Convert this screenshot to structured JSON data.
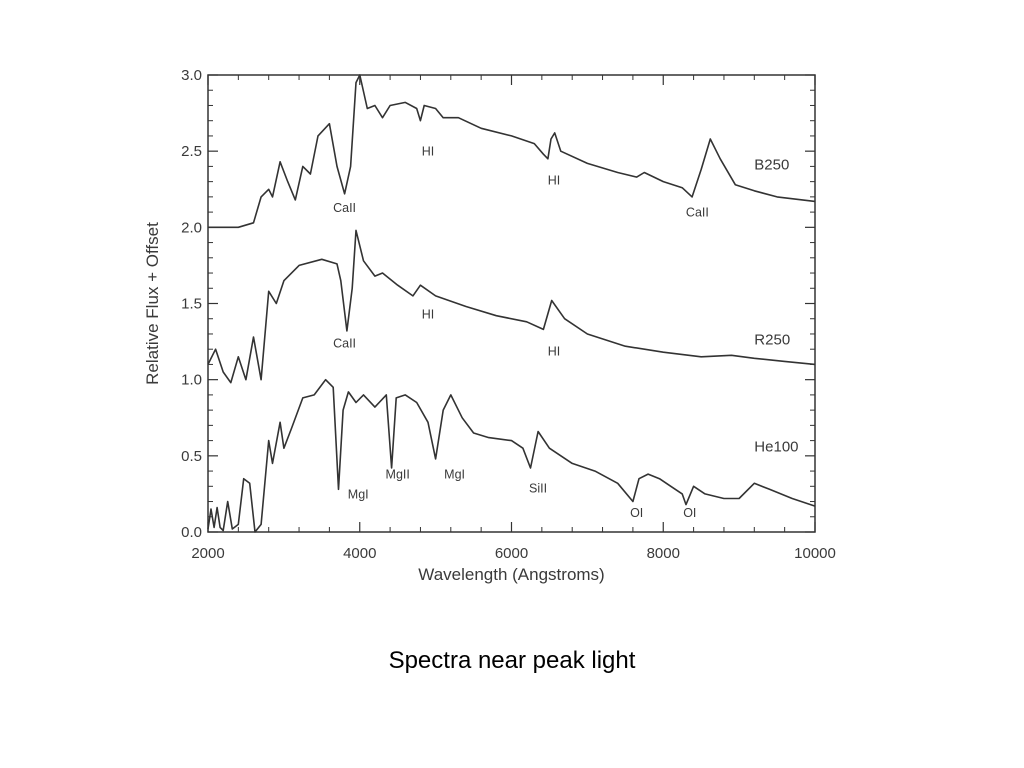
{
  "caption": "Spectra near peak light",
  "chart_data": {
    "type": "line",
    "title": "",
    "xlabel": "Wavelength (Angstroms)",
    "ylabel": "Relative Flux + Offset",
    "xlim": [
      2000,
      10000
    ],
    "ylim": [
      0.0,
      3.0
    ],
    "x_ticks": [
      2000,
      4000,
      6000,
      8000,
      10000
    ],
    "x_tick_labels": [
      "2000",
      "4000",
      "6000",
      "8000",
      "10000"
    ],
    "y_ticks": [
      0.0,
      0.5,
      1.0,
      1.5,
      2.0,
      2.5,
      3.0
    ],
    "y_tick_labels": [
      "0.0",
      "0.5",
      "1.0",
      "1.5",
      "2.0",
      "2.5",
      "3.0"
    ],
    "grid": false,
    "series": [
      {
        "name": "B250",
        "label_pos": [
          9200,
          2.38
        ],
        "points": [
          [
            2000,
            2.0
          ],
          [
            2200,
            2.0
          ],
          [
            2400,
            2.0
          ],
          [
            2600,
            2.03
          ],
          [
            2700,
            2.2
          ],
          [
            2800,
            2.25
          ],
          [
            2850,
            2.2
          ],
          [
            2950,
            2.43
          ],
          [
            3050,
            2.3
          ],
          [
            3150,
            2.18
          ],
          [
            3250,
            2.4
          ],
          [
            3350,
            2.35
          ],
          [
            3450,
            2.6
          ],
          [
            3600,
            2.68
          ],
          [
            3700,
            2.4
          ],
          [
            3800,
            2.22
          ],
          [
            3880,
            2.4
          ],
          [
            3950,
            2.95
          ],
          [
            4000,
            3.0
          ],
          [
            4100,
            2.78
          ],
          [
            4200,
            2.8
          ],
          [
            4300,
            2.72
          ],
          [
            4400,
            2.8
          ],
          [
            4600,
            2.82
          ],
          [
            4750,
            2.78
          ],
          [
            4800,
            2.7
          ],
          [
            4850,
            2.8
          ],
          [
            5000,
            2.78
          ],
          [
            5100,
            2.72
          ],
          [
            5300,
            2.72
          ],
          [
            5600,
            2.65
          ],
          [
            6000,
            2.6
          ],
          [
            6300,
            2.55
          ],
          [
            6420,
            2.48
          ],
          [
            6480,
            2.45
          ],
          [
            6520,
            2.58
          ],
          [
            6570,
            2.62
          ],
          [
            6650,
            2.5
          ],
          [
            7000,
            2.42
          ],
          [
            7400,
            2.36
          ],
          [
            7650,
            2.33
          ],
          [
            7750,
            2.36
          ],
          [
            8000,
            2.3
          ],
          [
            8250,
            2.26
          ],
          [
            8380,
            2.2
          ],
          [
            8500,
            2.38
          ],
          [
            8620,
            2.58
          ],
          [
            8750,
            2.45
          ],
          [
            8950,
            2.28
          ],
          [
            9200,
            2.24
          ],
          [
            9500,
            2.2
          ],
          [
            10000,
            2.17
          ]
        ]
      },
      {
        "name": "R250",
        "label_pos": [
          9200,
          1.23
        ],
        "points": [
          [
            2000,
            1.1
          ],
          [
            2100,
            1.2
          ],
          [
            2200,
            1.05
          ],
          [
            2300,
            0.98
          ],
          [
            2400,
            1.15
          ],
          [
            2500,
            1.0
          ],
          [
            2600,
            1.28
          ],
          [
            2700,
            1.0
          ],
          [
            2800,
            1.58
          ],
          [
            2900,
            1.5
          ],
          [
            3000,
            1.65
          ],
          [
            3200,
            1.75
          ],
          [
            3500,
            1.79
          ],
          [
            3700,
            1.76
          ],
          [
            3750,
            1.65
          ],
          [
            3830,
            1.32
          ],
          [
            3900,
            1.6
          ],
          [
            3950,
            1.98
          ],
          [
            4050,
            1.78
          ],
          [
            4200,
            1.68
          ],
          [
            4300,
            1.7
          ],
          [
            4500,
            1.62
          ],
          [
            4700,
            1.55
          ],
          [
            4800,
            1.62
          ],
          [
            5000,
            1.55
          ],
          [
            5400,
            1.48
          ],
          [
            5800,
            1.42
          ],
          [
            6200,
            1.38
          ],
          [
            6420,
            1.33
          ],
          [
            6530,
            1.52
          ],
          [
            6700,
            1.4
          ],
          [
            7000,
            1.3
          ],
          [
            7500,
            1.22
          ],
          [
            8000,
            1.18
          ],
          [
            8500,
            1.15
          ],
          [
            8900,
            1.16
          ],
          [
            9200,
            1.14
          ],
          [
            9600,
            1.12
          ],
          [
            10000,
            1.1
          ]
        ]
      },
      {
        "name": "He100",
        "label_pos": [
          9200,
          0.53
        ],
        "points": [
          [
            2000,
            0.02
          ],
          [
            2040,
            0.15
          ],
          [
            2080,
            0.03
          ],
          [
            2120,
            0.16
          ],
          [
            2160,
            0.03
          ],
          [
            2200,
            0.01
          ],
          [
            2260,
            0.2
          ],
          [
            2320,
            0.02
          ],
          [
            2400,
            0.05
          ],
          [
            2470,
            0.35
          ],
          [
            2550,
            0.32
          ],
          [
            2620,
            0.0
          ],
          [
            2700,
            0.05
          ],
          [
            2800,
            0.6
          ],
          [
            2850,
            0.45
          ],
          [
            2950,
            0.72
          ],
          [
            3000,
            0.55
          ],
          [
            3100,
            0.68
          ],
          [
            3250,
            0.88
          ],
          [
            3400,
            0.9
          ],
          [
            3550,
            1.0
          ],
          [
            3650,
            0.95
          ],
          [
            3720,
            0.28
          ],
          [
            3780,
            0.8
          ],
          [
            3850,
            0.92
          ],
          [
            3950,
            0.85
          ],
          [
            4050,
            0.9
          ],
          [
            4200,
            0.82
          ],
          [
            4350,
            0.9
          ],
          [
            4420,
            0.42
          ],
          [
            4480,
            0.88
          ],
          [
            4600,
            0.9
          ],
          [
            4750,
            0.85
          ],
          [
            4900,
            0.72
          ],
          [
            5000,
            0.48
          ],
          [
            5100,
            0.8
          ],
          [
            5200,
            0.9
          ],
          [
            5350,
            0.75
          ],
          [
            5500,
            0.65
          ],
          [
            5700,
            0.62
          ],
          [
            6000,
            0.6
          ],
          [
            6150,
            0.55
          ],
          [
            6250,
            0.42
          ],
          [
            6350,
            0.66
          ],
          [
            6500,
            0.55
          ],
          [
            6800,
            0.45
          ],
          [
            7100,
            0.4
          ],
          [
            7400,
            0.32
          ],
          [
            7600,
            0.2
          ],
          [
            7680,
            0.35
          ],
          [
            7800,
            0.38
          ],
          [
            7950,
            0.35
          ],
          [
            8100,
            0.3
          ],
          [
            8250,
            0.25
          ],
          [
            8300,
            0.18
          ],
          [
            8400,
            0.3
          ],
          [
            8550,
            0.25
          ],
          [
            8800,
            0.22
          ],
          [
            9000,
            0.22
          ],
          [
            9200,
            0.32
          ],
          [
            9400,
            0.28
          ],
          [
            9700,
            0.22
          ],
          [
            10000,
            0.17
          ]
        ]
      }
    ],
    "annotations": [
      {
        "text": "CaII",
        "x": 3800,
        "y": 2.1
      },
      {
        "text": "HI",
        "x": 4900,
        "y": 2.47
      },
      {
        "text": "HI",
        "x": 6560,
        "y": 2.28
      },
      {
        "text": "CaII",
        "x": 8450,
        "y": 2.07
      },
      {
        "text": "CaII",
        "x": 3800,
        "y": 1.21
      },
      {
        "text": "HI",
        "x": 4900,
        "y": 1.4
      },
      {
        "text": "HI",
        "x": 6560,
        "y": 1.16
      },
      {
        "text": "MgI",
        "x": 3980,
        "y": 0.22
      },
      {
        "text": "MgII",
        "x": 4500,
        "y": 0.35
      },
      {
        "text": "MgI",
        "x": 5250,
        "y": 0.35
      },
      {
        "text": "SiII",
        "x": 6350,
        "y": 0.26
      },
      {
        "text": "OI",
        "x": 7650,
        "y": 0.1
      },
      {
        "text": "OI",
        "x": 8350,
        "y": 0.1
      }
    ]
  }
}
